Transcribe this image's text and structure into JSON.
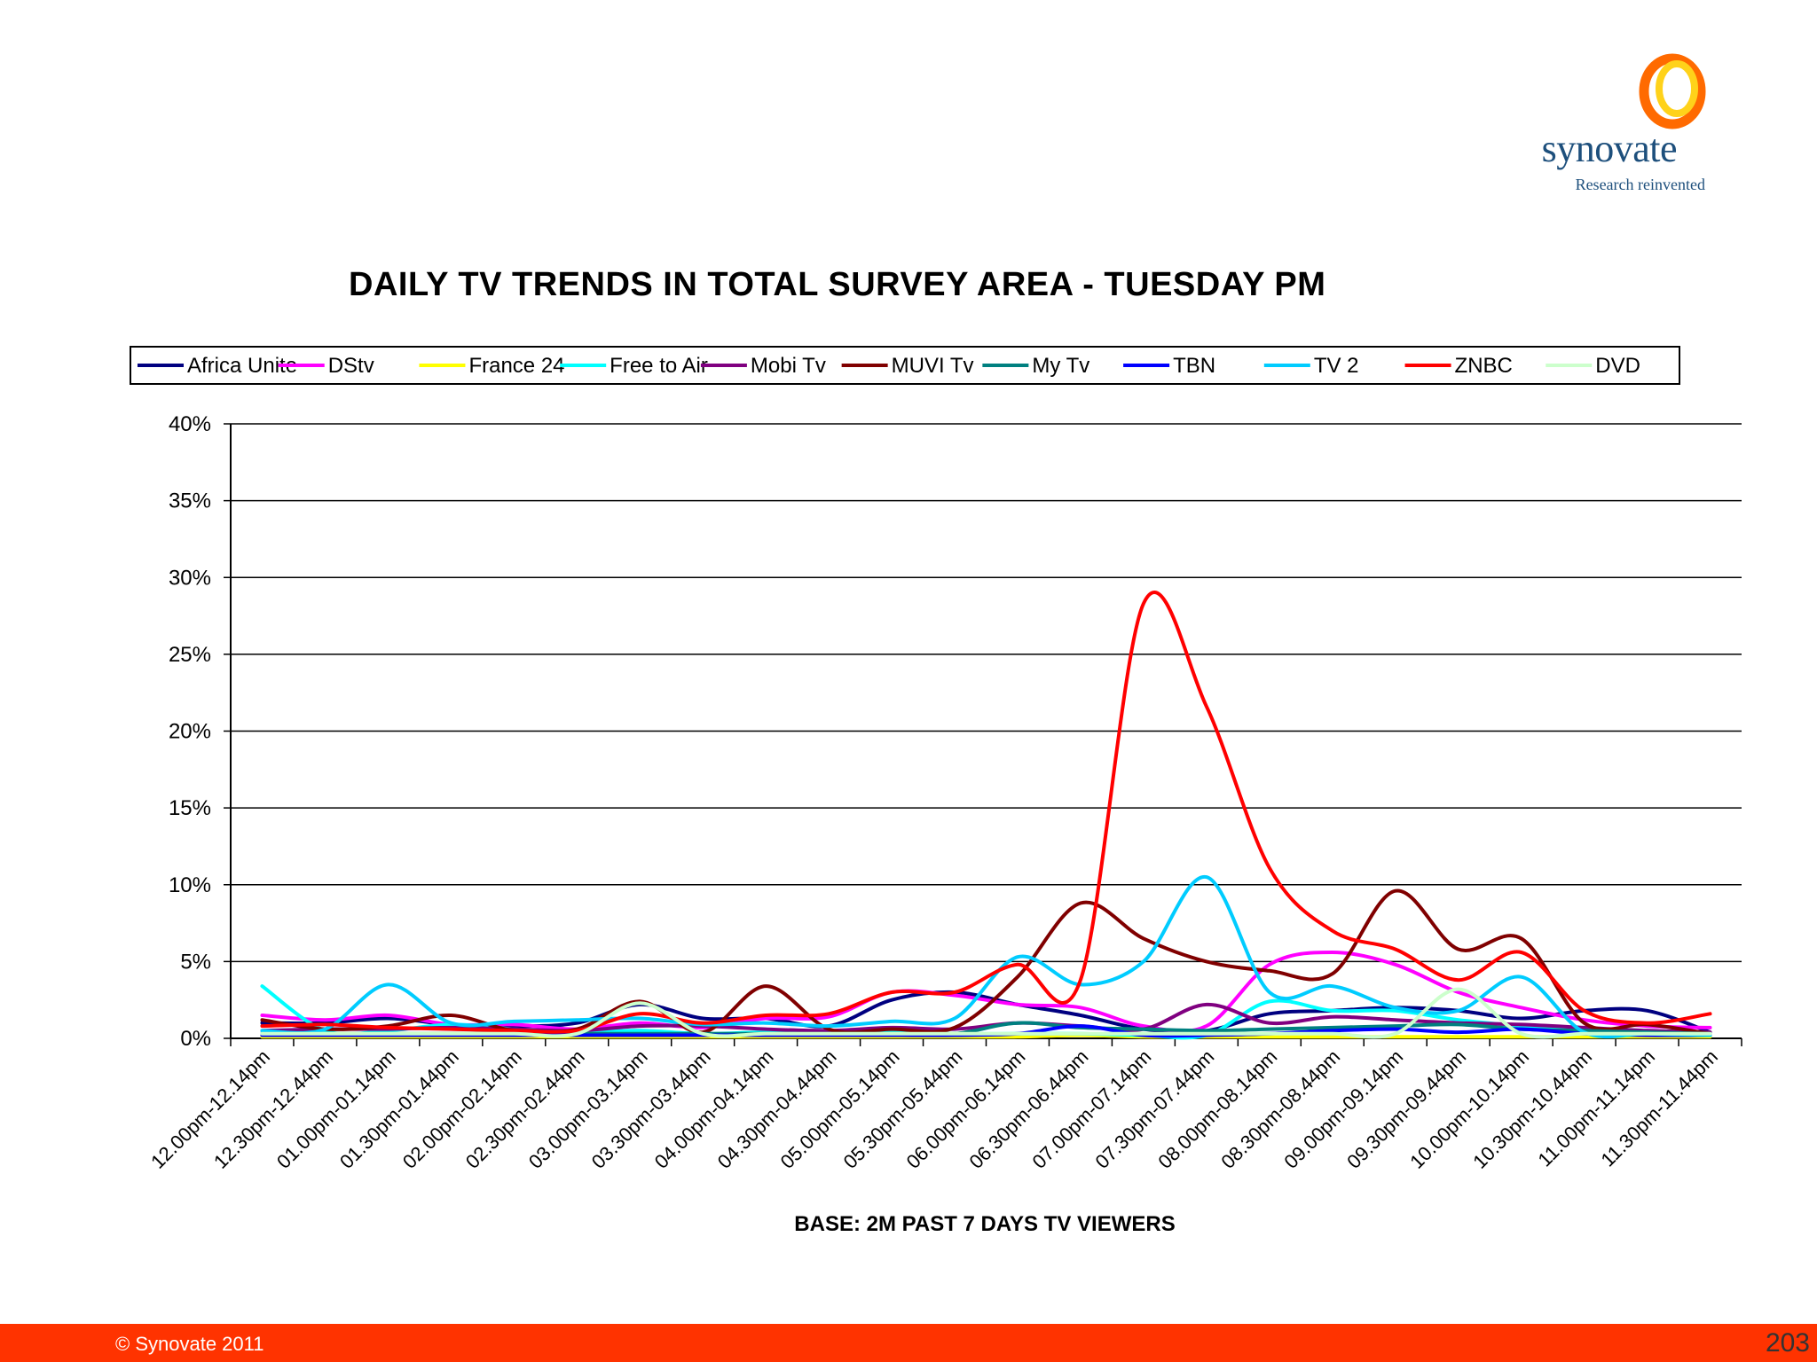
{
  "brand": {
    "name": "synovate",
    "tagline": "Research reinvented",
    "colors": {
      "ring_outer": "#ff6a00",
      "ring_inner": "#ffd21a",
      "text": "#1d4f7c"
    }
  },
  "footer": {
    "copyright": "© Synovate 2011",
    "page_number": "203",
    "color": "#ff3300"
  },
  "chart_data": {
    "type": "line",
    "title": "DAILY TV TRENDS IN TOTAL SURVEY AREA - TUESDAY PM",
    "xlabel": "BASE:  2M PAST 7 DAYS TV VIEWERS",
    "ylabel": "",
    "ylim": [
      0,
      40
    ],
    "yticks": [
      "0%",
      "5%",
      "10%",
      "15%",
      "20%",
      "25%",
      "30%",
      "35%",
      "40%"
    ],
    "grid": true,
    "legend_position": "top",
    "categories": [
      "12.00pm-12.14pm",
      "12.30pm-12.44pm",
      "01.00pm-01.14pm",
      "01.30pm-01.44pm",
      "02.00pm-02.14pm",
      "02.30pm-02.44pm",
      "03.00pm-03.14pm",
      "03.30pm-03.44pm",
      "04.00pm-04.14pm",
      "04.30pm-04.44pm",
      "05.00pm-05.14pm",
      "05.30pm-05.44pm",
      "06.00pm-06.14pm",
      "06.30pm-06.44pm",
      "07.00pm-07.14pm",
      "07.30pm-07.44pm",
      "08.00pm-08.14pm",
      "08.30pm-08.44pm",
      "09.00pm-09.14pm",
      "09.30pm-09.44pm",
      "10.00pm-10.14pm",
      "10.30pm-10.44pm",
      "11.00pm-11.14pm",
      "11.30pm-11.44pm"
    ],
    "series": [
      {
        "name": "Africa Unite",
        "color": "#000080",
        "values": [
          1.0,
          1.0,
          1.3,
          0.9,
          0.8,
          1.0,
          2.2,
          1.3,
          1.3,
          0.8,
          2.5,
          3.0,
          2.2,
          1.5,
          0.6,
          0.5,
          1.6,
          1.8,
          2.0,
          1.8,
          1.3,
          1.8,
          1.8,
          0.4
        ]
      },
      {
        "name": "DStv",
        "color": "#ff00ff",
        "values": [
          1.5,
          1.2,
          1.5,
          0.9,
          0.9,
          0.6,
          1.0,
          0.7,
          1.3,
          1.4,
          3.0,
          2.8,
          2.2,
          2.0,
          0.8,
          0.8,
          4.8,
          5.6,
          4.8,
          3.0,
          2.0,
          1.2,
          0.8,
          0.7
        ]
      },
      {
        "name": "France 24",
        "color": "#ffff00",
        "values": [
          0.1,
          0.1,
          0.1,
          0.1,
          0.1,
          0.1,
          0.1,
          0.1,
          0.1,
          0.1,
          0.1,
          0.1,
          0.1,
          0.2,
          0.1,
          0.1,
          0.1,
          0.1,
          0.1,
          0.1,
          0.1,
          0.1,
          0.1,
          0.1
        ]
      },
      {
        "name": "Free to Air",
        "color": "#00ffff",
        "values": [
          3.4,
          0.5,
          0.5,
          0.9,
          0.6,
          0.4,
          0.5,
          0.3,
          0.4,
          0.3,
          0.4,
          0.3,
          0.3,
          0.3,
          0.2,
          0.2,
          2.4,
          1.8,
          1.8,
          1.2,
          0.8,
          0.5,
          0.3,
          0.2
        ]
      },
      {
        "name": "Mobi Tv",
        "color": "#800080",
        "values": [
          0.5,
          0.6,
          0.6,
          0.7,
          0.6,
          0.5,
          0.8,
          0.8,
          0.6,
          0.5,
          0.7,
          0.6,
          1.0,
          0.8,
          0.6,
          2.2,
          1.0,
          1.4,
          1.2,
          1.0,
          0.9,
          0.7,
          0.5,
          0.4
        ]
      },
      {
        "name": "MUVI Tv",
        "color": "#800000",
        "values": [
          1.2,
          0.6,
          0.8,
          1.5,
          0.5,
          0.6,
          2.4,
          0.4,
          3.4,
          0.6,
          0.6,
          0.7,
          4.0,
          8.8,
          6.5,
          5.0,
          4.4,
          4.2,
          9.6,
          5.8,
          6.5,
          1.0,
          0.9,
          0.3
        ]
      },
      {
        "name": "My Tv",
        "color": "#008080",
        "values": [
          0.3,
          0.3,
          0.3,
          0.3,
          0.3,
          0.3,
          0.3,
          0.3,
          0.3,
          0.3,
          0.3,
          0.3,
          1.0,
          0.7,
          0.6,
          0.5,
          0.6,
          0.7,
          0.8,
          0.9,
          0.6,
          0.5,
          0.4,
          0.3
        ]
      },
      {
        "name": "TBN",
        "color": "#0000ff",
        "values": [
          0.2,
          0.2,
          0.2,
          0.2,
          0.2,
          0.2,
          0.2,
          0.2,
          0.2,
          0.2,
          0.2,
          0.2,
          0.3,
          0.8,
          0.2,
          0.2,
          0.3,
          0.5,
          0.6,
          0.4,
          0.6,
          0.3,
          0.2,
          0.2
        ]
      },
      {
        "name": "TV 2",
        "color": "#00ccff",
        "values": [
          0.5,
          0.6,
          3.5,
          1.0,
          1.1,
          1.2,
          1.3,
          0.9,
          1.0,
          0.8,
          1.1,
          1.3,
          5.3,
          3.5,
          5.0,
          10.5,
          3.0,
          3.4,
          2.0,
          1.8,
          4.0,
          0.4,
          0.3,
          0.2
        ]
      },
      {
        "name": "ZNBC",
        "color": "#ff0000",
        "values": [
          0.8,
          0.9,
          0.7,
          0.6,
          0.5,
          0.5,
          1.6,
          1.0,
          1.5,
          1.6,
          3.0,
          3.0,
          4.8,
          3.8,
          28.3,
          21.6,
          11.1,
          7.0,
          5.8,
          3.8,
          5.6,
          1.8,
          1.0,
          1.6
        ]
      },
      {
        "name": "DVD",
        "color": "#ccffcc",
        "values": [
          0.3,
          0.3,
          0.3,
          0.3,
          0.3,
          0.3,
          2.3,
          0.3,
          0.3,
          0.3,
          0.3,
          0.3,
          0.3,
          0.3,
          0.3,
          0.3,
          0.3,
          0.3,
          0.3,
          3.2,
          0.3,
          0.3,
          0.3,
          0.3
        ]
      }
    ]
  }
}
